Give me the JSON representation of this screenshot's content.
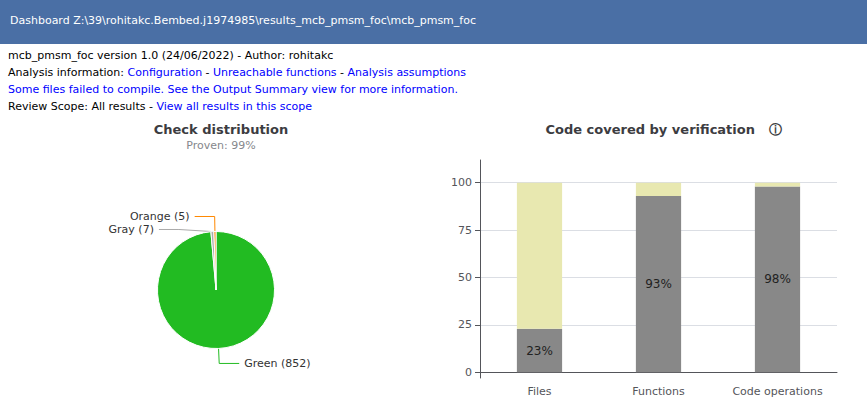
{
  "title": "Dashboard Z:\\39\\rohitakc.Bembed.j1974985\\results_mcb_pmsm_foc\\mcb_pmsm_foc",
  "annotations": [
    [
      {
        "text": "mcb_pmsm_foc version 1.0 (24/06/2022) - Author: rohitakc",
        "color": "#000000"
      }
    ],
    [
      {
        "text": "Analysis information: ",
        "color": "#000000"
      },
      {
        "text": "Configuration",
        "color": "#0000ff"
      },
      {
        "text": " - ",
        "color": "#000000"
      },
      {
        "text": "Unreachable functions",
        "color": "#0000ff"
      },
      {
        "text": " - ",
        "color": "#000000"
      },
      {
        "text": "Analysis assumptions",
        "color": "#0000ff"
      }
    ],
    [
      {
        "text": "Some files failed to compile. See the Output Summary view for more information.",
        "color": "#0000ff"
      }
    ],
    [
      {
        "text": "Review Scope: ",
        "color": "#000000"
      },
      {
        "text": "All results",
        "color": "#000000"
      },
      {
        "text": " - ",
        "color": "#000000"
      },
      {
        "text": "View all results in this scope",
        "color": "#0000ff"
      }
    ]
  ],
  "chart_data": [
    {
      "type": "pie",
      "title": "Check distribution",
      "subtitle": "Proven: 99%",
      "categories": [
        "Green (852)",
        "Gray (7)",
        "Orange (5)"
      ],
      "values": [
        852,
        7,
        5
      ],
      "colors": [
        "#22bb22",
        "#aaaaaa",
        "#ff8800"
      ]
    },
    {
      "type": "bar",
      "title": "Code covered by verification   ⓘ",
      "categories": [
        "Files",
        "Functions",
        "Code operations"
      ],
      "stacked": true,
      "series": [
        {
          "color": "#888888",
          "values": [
            23,
            93,
            98
          ],
          "data_labels": true,
          "value_labels": [
            "23%",
            "93%",
            "98%"
          ]
        },
        {
          "color": "#e8e8b0",
          "values": [
            77,
            7,
            2
          ]
        }
      ],
      "ylim": [
        -3,
        112
      ],
      "yticks": [
        0,
        25,
        50,
        75,
        100
      ],
      "grid": true
    }
  ]
}
